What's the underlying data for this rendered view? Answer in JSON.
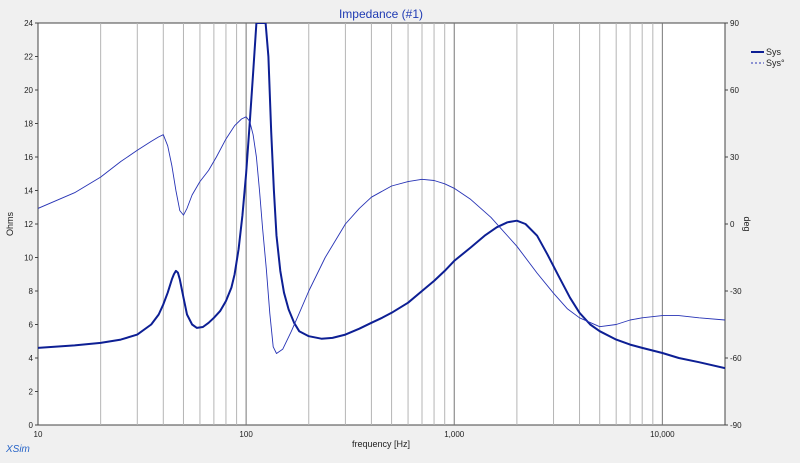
{
  "chart_data": {
    "type": "line",
    "title": "Impedance (#1)",
    "xlabel": "frequency [Hz]",
    "ylabel_left": "Ohms",
    "ylabel_right": "deg",
    "x_scale": "log",
    "xlim": [
      10,
      20000
    ],
    "ylim_left": [
      0,
      24
    ],
    "ylim_right": [
      -90,
      90
    ],
    "x_tick_labels": [
      {
        "value": 10,
        "label": "10"
      },
      {
        "value": 100,
        "label": "100"
      },
      {
        "value": 1000,
        "label": "1,000"
      },
      {
        "value": 10000,
        "label": "10,000"
      }
    ],
    "y_left_ticks": [
      0,
      2,
      4,
      6,
      8,
      10,
      12,
      14,
      16,
      18,
      20,
      22,
      24
    ],
    "y_right_ticks": [
      -90,
      -60,
      -30,
      0,
      30,
      60,
      90
    ],
    "grid": true,
    "legend_position": "top-right",
    "series": [
      {
        "name": "Sys",
        "axis": "left",
        "style": "solid",
        "color": "#0d1f94",
        "x": [
          10,
          15,
          20,
          25,
          30,
          35,
          38,
          40,
          42,
          44,
          45,
          46,
          47,
          48,
          50,
          52,
          55,
          58,
          62,
          66,
          70,
          75,
          80,
          85,
          88,
          92,
          96,
          100,
          104,
          108,
          112,
          116,
          120,
          124,
          128,
          132,
          136,
          140,
          146,
          152,
          160,
          170,
          180,
          200,
          230,
          260,
          300,
          350,
          400,
          450,
          500,
          600,
          700,
          800,
          900,
          1000,
          1200,
          1400,
          1600,
          1800,
          2000,
          2200,
          2500,
          2800,
          3200,
          3600,
          4000,
          4500,
          5000,
          6000,
          7000,
          8000,
          10000,
          12000,
          15000,
          20000
        ],
        "y": [
          4.6,
          4.75,
          4.9,
          5.1,
          5.4,
          6.0,
          6.6,
          7.2,
          7.9,
          8.7,
          9.0,
          9.2,
          9.1,
          8.7,
          7.6,
          6.6,
          6.0,
          5.8,
          5.85,
          6.1,
          6.4,
          6.8,
          7.4,
          8.2,
          9.0,
          10.5,
          12.5,
          15.0,
          18.0,
          21.0,
          24.0,
          24.0,
          24.0,
          24.0,
          22.0,
          17.5,
          14.0,
          11.3,
          9.2,
          7.9,
          6.9,
          6.1,
          5.6,
          5.3,
          5.15,
          5.2,
          5.4,
          5.75,
          6.1,
          6.4,
          6.7,
          7.3,
          8.0,
          8.6,
          9.2,
          9.8,
          10.6,
          11.3,
          11.8,
          12.1,
          12.2,
          12.0,
          11.3,
          10.2,
          8.8,
          7.6,
          6.7,
          6.0,
          5.6,
          5.1,
          4.8,
          4.6,
          4.3,
          4.0,
          3.75,
          3.4
        ]
      },
      {
        "name": "Sys°",
        "axis": "right",
        "style": "dashed",
        "color": "#2733b5",
        "x": [
          10,
          15,
          20,
          25,
          30,
          35,
          38,
          40,
          42,
          44,
          46,
          48,
          50,
          52,
          55,
          60,
          66,
          72,
          80,
          88,
          95,
          100,
          104,
          108,
          112,
          116,
          120,
          125,
          130,
          135,
          140,
          150,
          165,
          180,
          200,
          240,
          300,
          350,
          400,
          500,
          600,
          700,
          800,
          900,
          1000,
          1200,
          1500,
          2000,
          2500,
          3000,
          3500,
          4000,
          5000,
          6000,
          7000,
          8000,
          10000,
          12000,
          15000,
          20000
        ],
        "y": [
          7,
          14,
          21,
          28,
          33,
          37,
          39,
          40,
          35,
          26,
          15,
          6,
          4,
          7,
          13,
          19,
          24,
          30,
          38,
          44,
          47,
          48,
          46,
          40,
          30,
          15,
          -2,
          -20,
          -40,
          -55,
          -58,
          -56,
          -48,
          -40,
          -30,
          -15,
          0,
          7,
          12,
          17,
          19,
          20,
          19.5,
          18,
          16,
          11,
          3,
          -10,
          -22,
          -31,
          -38,
          -42,
          -46,
          -45,
          -43,
          -42,
          -41,
          -41,
          -42,
          -43
        ]
      }
    ]
  },
  "legend": {
    "items": [
      {
        "label": "Sys",
        "style": "solid"
      },
      {
        "label": "Sys°",
        "style": "dashed"
      }
    ]
  },
  "watermark": "XSim"
}
